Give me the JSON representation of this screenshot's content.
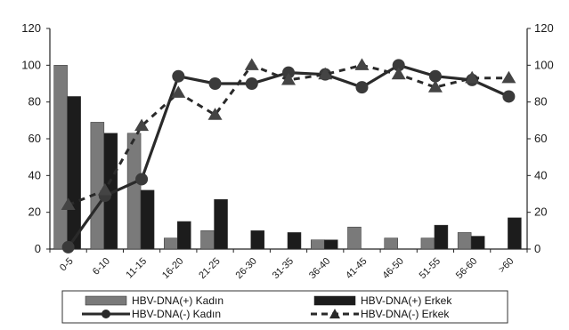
{
  "chart_data": {
    "type": "bar",
    "categories": [
      "0-5",
      "6-10",
      "11-15",
      "16-20",
      "21-25",
      "26-30",
      "31-35",
      "36-40",
      "41-45",
      "46-50",
      "51-55",
      "56-60",
      ">60"
    ],
    "ylim": [
      0,
      120
    ],
    "y_ticks": [
      "0",
      "20",
      "40",
      "60",
      "80",
      "100",
      "120"
    ],
    "y2_ticks": [
      "0",
      "20",
      "40",
      "60",
      "80",
      "100",
      "120"
    ],
    "grid": false,
    "legend_position": "bottom",
    "series": [
      {
        "name": "HBV-DNA(+) Kadın",
        "kind": "bar",
        "color": "#7a7a7a",
        "values": [
          100,
          69,
          63,
          6,
          10,
          0,
          0,
          5,
          12,
          6,
          6,
          9,
          0
        ]
      },
      {
        "name": "HBV-DNA(+) Erkek",
        "kind": "bar",
        "color": "#1c1c1c",
        "values": [
          83,
          63,
          32,
          15,
          27,
          10,
          9,
          5,
          0,
          0,
          13,
          7,
          17
        ]
      },
      {
        "name": "HBV-DNA(-) Kadın",
        "kind": "line",
        "style": "solid-circle",
        "color": "#2a2a2a",
        "values": [
          1,
          29,
          38,
          94,
          90,
          90,
          96,
          95,
          88,
          100,
          94,
          92,
          83
        ]
      },
      {
        "name": "HBV-DNA(-) Erkek",
        "kind": "line",
        "style": "dashed-triangle",
        "color": "#2a2a2a",
        "values": [
          24,
          32,
          67,
          85,
          73,
          100,
          92,
          95,
          100,
          95,
          88,
          93,
          93
        ]
      }
    ],
    "right_axis_last": "7"
  }
}
